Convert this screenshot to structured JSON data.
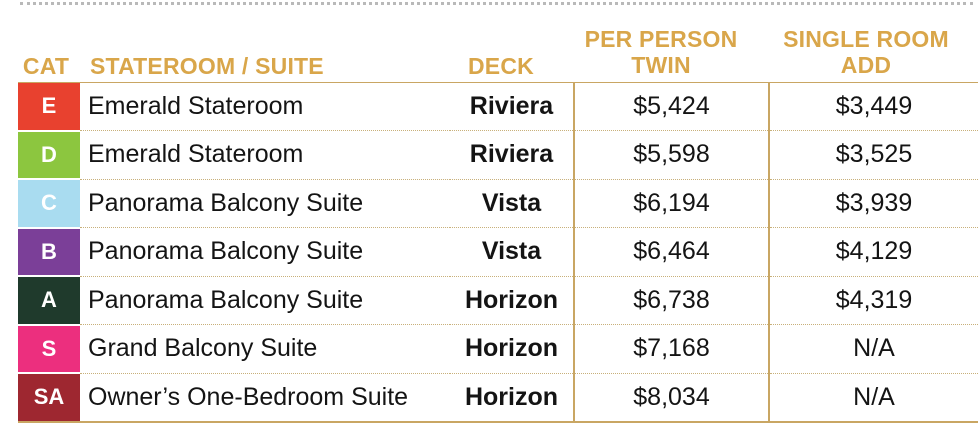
{
  "headers": {
    "cat": "CAT",
    "room": "STATEROOM / SUITE",
    "deck": "DECK",
    "twin_line1": "PER PERSON",
    "twin_line2": "TWIN",
    "single_line1": "SINGLE ROOM",
    "single_line2": "ADD"
  },
  "rows": [
    {
      "cat": "E",
      "cat_color": "#e8412f",
      "room": "Emerald Stateroom",
      "deck": "Riviera",
      "twin": "$5,424",
      "single": "$3,449"
    },
    {
      "cat": "D",
      "cat_color": "#8cc63f",
      "room": "Emerald Stateroom",
      "deck": "Riviera",
      "twin": "$5,598",
      "single": "$3,525"
    },
    {
      "cat": "C",
      "cat_color": "#a9dcf0",
      "room": "Panorama Balcony Suite",
      "deck": "Vista",
      "twin": "$6,194",
      "single": "$3,939"
    },
    {
      "cat": "B",
      "cat_color": "#7b3f98",
      "room": "Panorama Balcony Suite",
      "deck": "Vista",
      "twin": "$6,464",
      "single": "$4,129"
    },
    {
      "cat": "A",
      "cat_color": "#1f3a2c",
      "room": "Panorama Balcony Suite",
      "deck": "Horizon",
      "twin": "$6,738",
      "single": "$4,319"
    },
    {
      "cat": "S",
      "cat_color": "#ec2f7e",
      "room": "Grand Balcony Suite",
      "deck": "Horizon",
      "twin": "$7,168",
      "single": "N/A"
    },
    {
      "cat": "SA",
      "cat_color": "#9e2730",
      "room": "Owner’s One-Bedroom Suite",
      "deck": "Horizon",
      "twin": "$8,034",
      "single": "N/A"
    }
  ],
  "colors": {
    "header_gold": "#d9a64a",
    "rule_gold": "#c9a663"
  }
}
